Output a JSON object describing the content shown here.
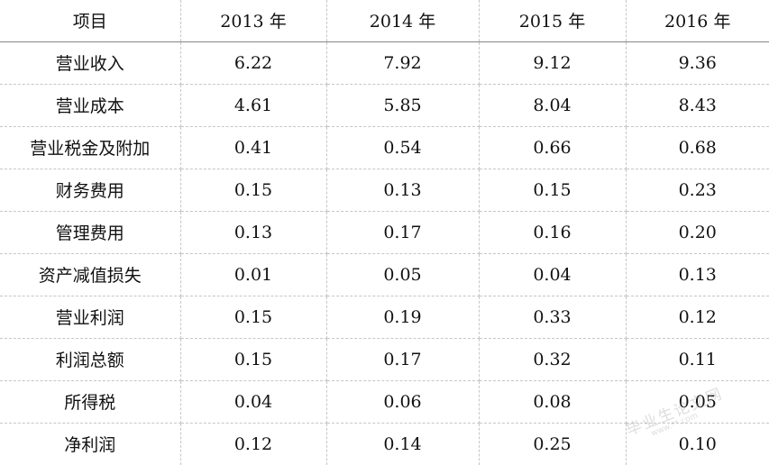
{
  "table": {
    "headers": [
      "项目",
      "2013 年",
      "2014 年",
      "2015 年",
      "2016 年"
    ],
    "rows": [
      {
        "label": "营业收入",
        "values": [
          "6.22",
          "7.92",
          "9.12",
          "9.36"
        ]
      },
      {
        "label": "营业成本",
        "values": [
          "4.61",
          "5.85",
          "8.04",
          "8.43"
        ]
      },
      {
        "label": "营业税金及附加",
        "values": [
          "0.41",
          "0.54",
          "0.66",
          "0.68"
        ]
      },
      {
        "label": "财务费用",
        "values": [
          "0.15",
          "0.13",
          "0.15",
          "0.23"
        ]
      },
      {
        "label": "管理费用",
        "values": [
          "0.13",
          "0.17",
          "0.16",
          "0.20"
        ]
      },
      {
        "label": "资产减值损失",
        "values": [
          "0.01",
          "0.05",
          "0.04",
          "0.13"
        ]
      },
      {
        "label": "营业利润",
        "values": [
          "0.15",
          "0.19",
          "0.33",
          "0.12"
        ]
      },
      {
        "label": "利润总额",
        "values": [
          "0.15",
          "0.17",
          "0.32",
          "0.11"
        ]
      },
      {
        "label": "所得税",
        "values": [
          "0.04",
          "0.06",
          "0.08",
          "0.05"
        ]
      },
      {
        "label": "净利润",
        "values": [
          "0.12",
          "0.14",
          "0.25",
          "0.10"
        ]
      }
    ]
  },
  "watermark": {
    "main": "毕业生论文网",
    "sub": "www.**.com"
  }
}
